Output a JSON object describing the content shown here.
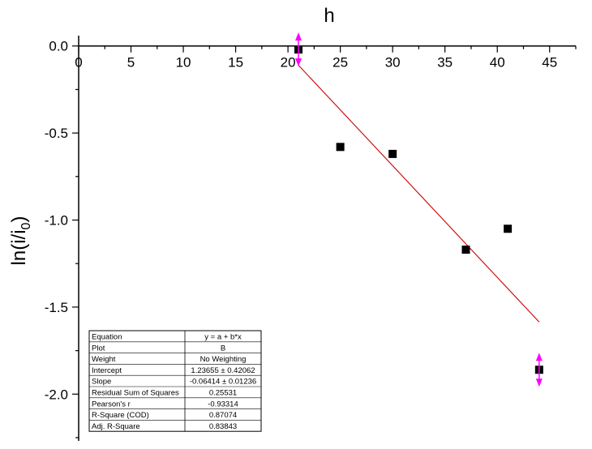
{
  "chart_data": {
    "type": "scatter",
    "title": "",
    "xlabel": "h",
    "ylabel_main": "ln(i/i",
    "ylabel_sub": "0",
    "ylabel_close": ")",
    "xlim": [
      0,
      47.5
    ],
    "ylim": [
      -2.25,
      0.05
    ],
    "x_ticks": [
      0,
      5,
      10,
      15,
      20,
      25,
      30,
      35,
      40,
      45
    ],
    "y_ticks": [
      0.0,
      -0.5,
      -1.0,
      -1.5,
      -2.0
    ],
    "y_tick_labels": [
      "0.0",
      "-0.5",
      "-1.0",
      "-1.5",
      "-2.0"
    ],
    "x_axis_position": "top",
    "grid": false,
    "series": [
      {
        "marker": "square",
        "color": "#000000",
        "points": [
          {
            "x": 21,
            "y": -0.02
          },
          {
            "x": 25,
            "y": -0.58
          },
          {
            "x": 30,
            "y": -0.62
          },
          {
            "x": 37,
            "y": -1.17
          },
          {
            "x": 41,
            "y": -1.05
          },
          {
            "x": 44,
            "y": -1.86
          }
        ]
      }
    ],
    "fit_line": {
      "color": "#cc0000",
      "x_start": 21,
      "x_end": 44,
      "intercept": 1.23655,
      "slope": -0.06414
    },
    "range_markers": {
      "color": "#ff00ff",
      "points": [
        {
          "x": 21,
          "y": -0.02
        },
        {
          "x": 44,
          "y": -1.86
        }
      ]
    },
    "stats_table": {
      "rows": [
        {
          "label": "Equation",
          "value": "y = a + b*x"
        },
        {
          "label": "Plot",
          "value": "B"
        },
        {
          "label": "Weight",
          "value": "No Weighting"
        },
        {
          "label": "Intercept",
          "value": "1.23655 ± 0.42062"
        },
        {
          "label": "Slope",
          "value": "-0.06414 ± 0.01236"
        },
        {
          "label": "Residual Sum of Squares",
          "value": "0.25531"
        },
        {
          "label": "Pearson's r",
          "value": "-0.93314"
        },
        {
          "label": "R-Square (COD)",
          "value": "0.87074"
        },
        {
          "label": "Adj. R-Square",
          "value": "0.83843"
        }
      ]
    }
  }
}
